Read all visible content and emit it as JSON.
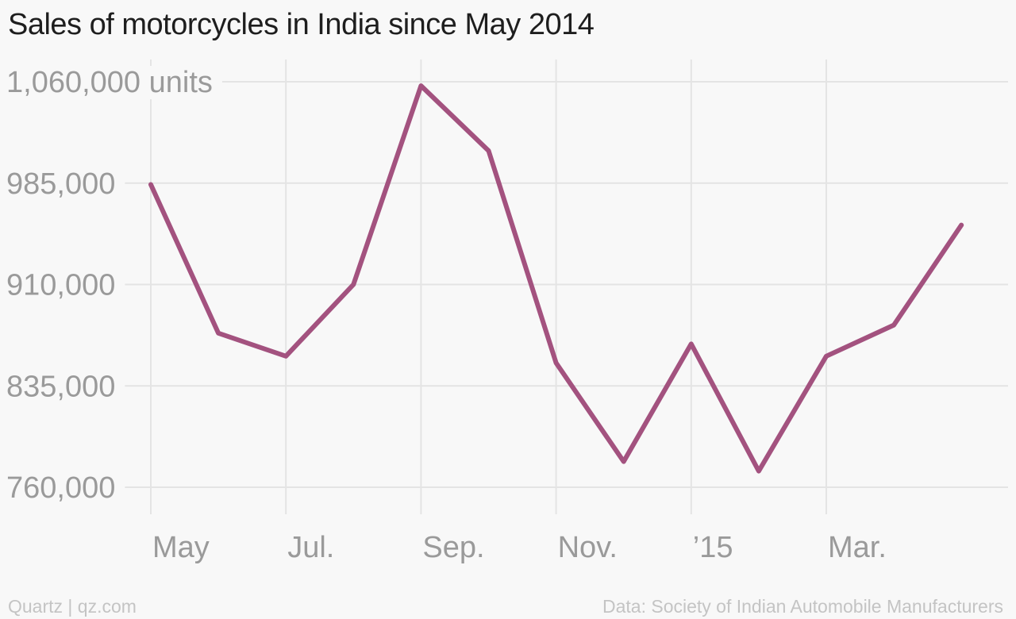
{
  "title": "Sales of motorcycles in India since May 2014",
  "footer": {
    "credit": "Quartz | qz.com",
    "source": "Data: Society of Indian Automobile Manufacturers"
  },
  "colors": {
    "line": "#a3527f",
    "grid": "#e4e4e4",
    "text": "#9a9a9a"
  },
  "chart_data": {
    "type": "line",
    "title": "Sales of motorcycles in India since May 2014",
    "x": [
      "2014-05",
      "2014-06",
      "2014-07",
      "2014-08",
      "2014-09",
      "2014-10",
      "2014-11",
      "2014-12",
      "2015-01",
      "2015-02",
      "2015-03",
      "2015-04",
      "2015-05"
    ],
    "series": [
      {
        "values": [
          984000,
          874000,
          857000,
          910000,
          1057000,
          1009000,
          852000,
          779000,
          866000,
          772000,
          857000,
          880000,
          954000
        ]
      }
    ],
    "y_ticks": [
      {
        "value": 1060000,
        "label": "1,060,000 units"
      },
      {
        "value": 985000,
        "label": "985,000"
      },
      {
        "value": 910000,
        "label": "910,000"
      },
      {
        "value": 835000,
        "label": "835,000"
      },
      {
        "value": 760000,
        "label": "760,000"
      }
    ],
    "x_ticks": [
      {
        "x": "2014-05",
        "label": "May"
      },
      {
        "x": "2014-07",
        "label": "Jul."
      },
      {
        "x": "2014-09",
        "label": "Sep."
      },
      {
        "x": "2014-11",
        "label": "Nov."
      },
      {
        "x": "2015-01",
        "label": "’15"
      },
      {
        "x": "2015-03",
        "label": "Mar."
      }
    ],
    "ylim": [
      760000,
      1060000
    ],
    "grid": true
  }
}
